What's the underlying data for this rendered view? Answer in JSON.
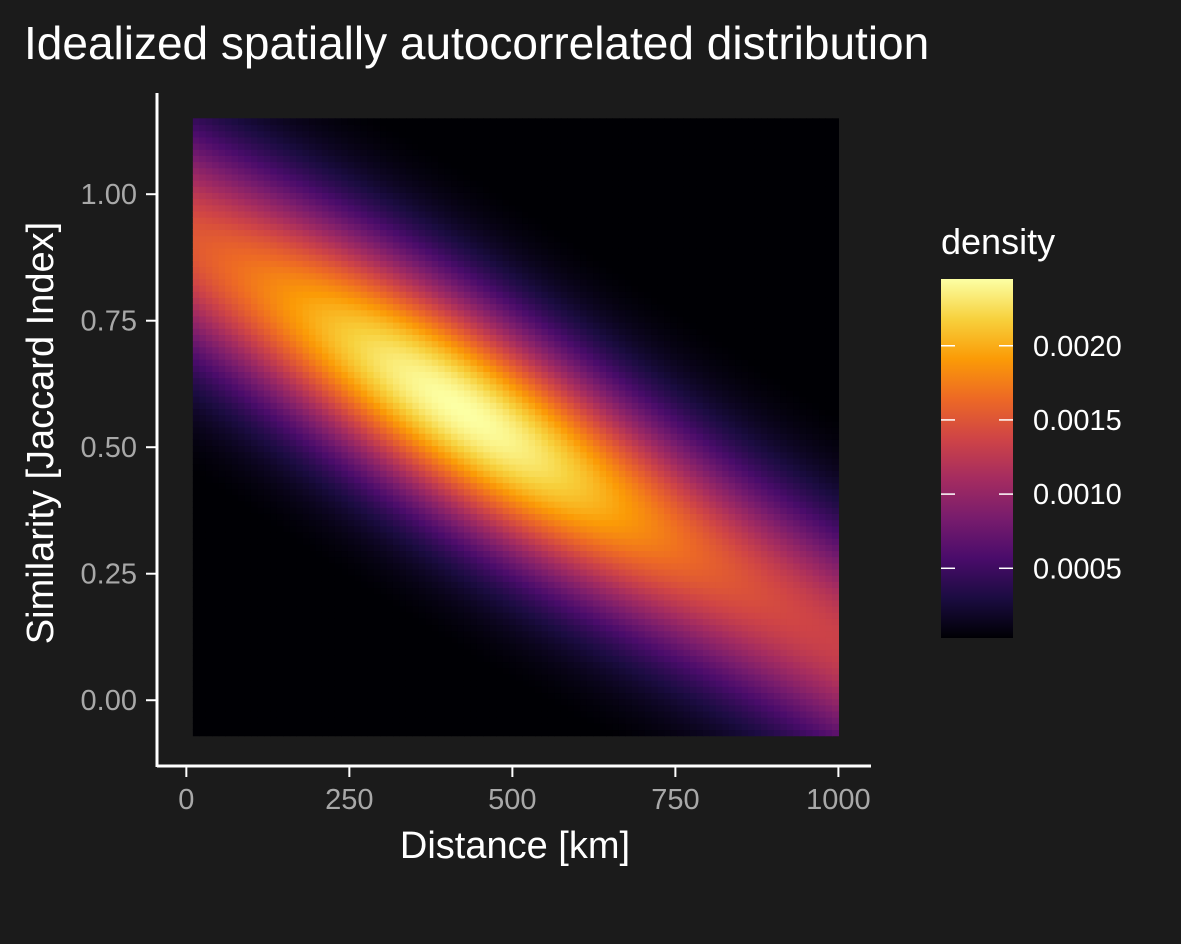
{
  "chart_data": {
    "type": "heatmap",
    "title": "Idealized spatially autocorrelated distribution",
    "xlabel": "Distance [km]",
    "ylabel": "Similarity [Jaccard Index]",
    "x_range": [
      10,
      1000
    ],
    "y_range": [
      -0.07,
      1.15
    ],
    "xlim": [
      -45,
      1050
    ],
    "ylim": [
      -0.13,
      1.2
    ],
    "x_ticks": [
      0,
      250,
      500,
      750,
      1000
    ],
    "x_tick_labels": [
      "0",
      "250",
      "500",
      "750",
      "1000"
    ],
    "y_ticks": [
      0.0,
      0.25,
      0.5,
      0.75,
      1.0
    ],
    "y_tick_labels": [
      "0.00",
      "0.25",
      "0.50",
      "0.75",
      "1.00"
    ],
    "density_model": {
      "description": "2D density concentrated along a negative diagonal: similarity decreases linearly with distance",
      "ridge": {
        "x": [
          10,
          1000
        ],
        "y": [
          0.9,
          0.12
        ]
      },
      "peak": {
        "x": 420,
        "y": 0.55,
        "density": 0.00245
      },
      "edge_density": 0.0013,
      "max_density": 0.00245
    },
    "colorscale": {
      "name": "inferno",
      "stops": [
        "#000004",
        "#1b0c41",
        "#4a0c6b",
        "#781c6d",
        "#a52c60",
        "#cf4446",
        "#ed6925",
        "#fb9b06",
        "#f7d13d",
        "#fcffa4"
      ]
    },
    "legend": {
      "title": "density",
      "placement": "right",
      "range": [
        3e-05,
        0.00245
      ],
      "ticks": [
        0.0005,
        0.001,
        0.0015,
        0.002
      ],
      "tick_labels": [
        "0.0005",
        "0.0010",
        "0.0015",
        "0.0020"
      ]
    },
    "grid": false
  }
}
